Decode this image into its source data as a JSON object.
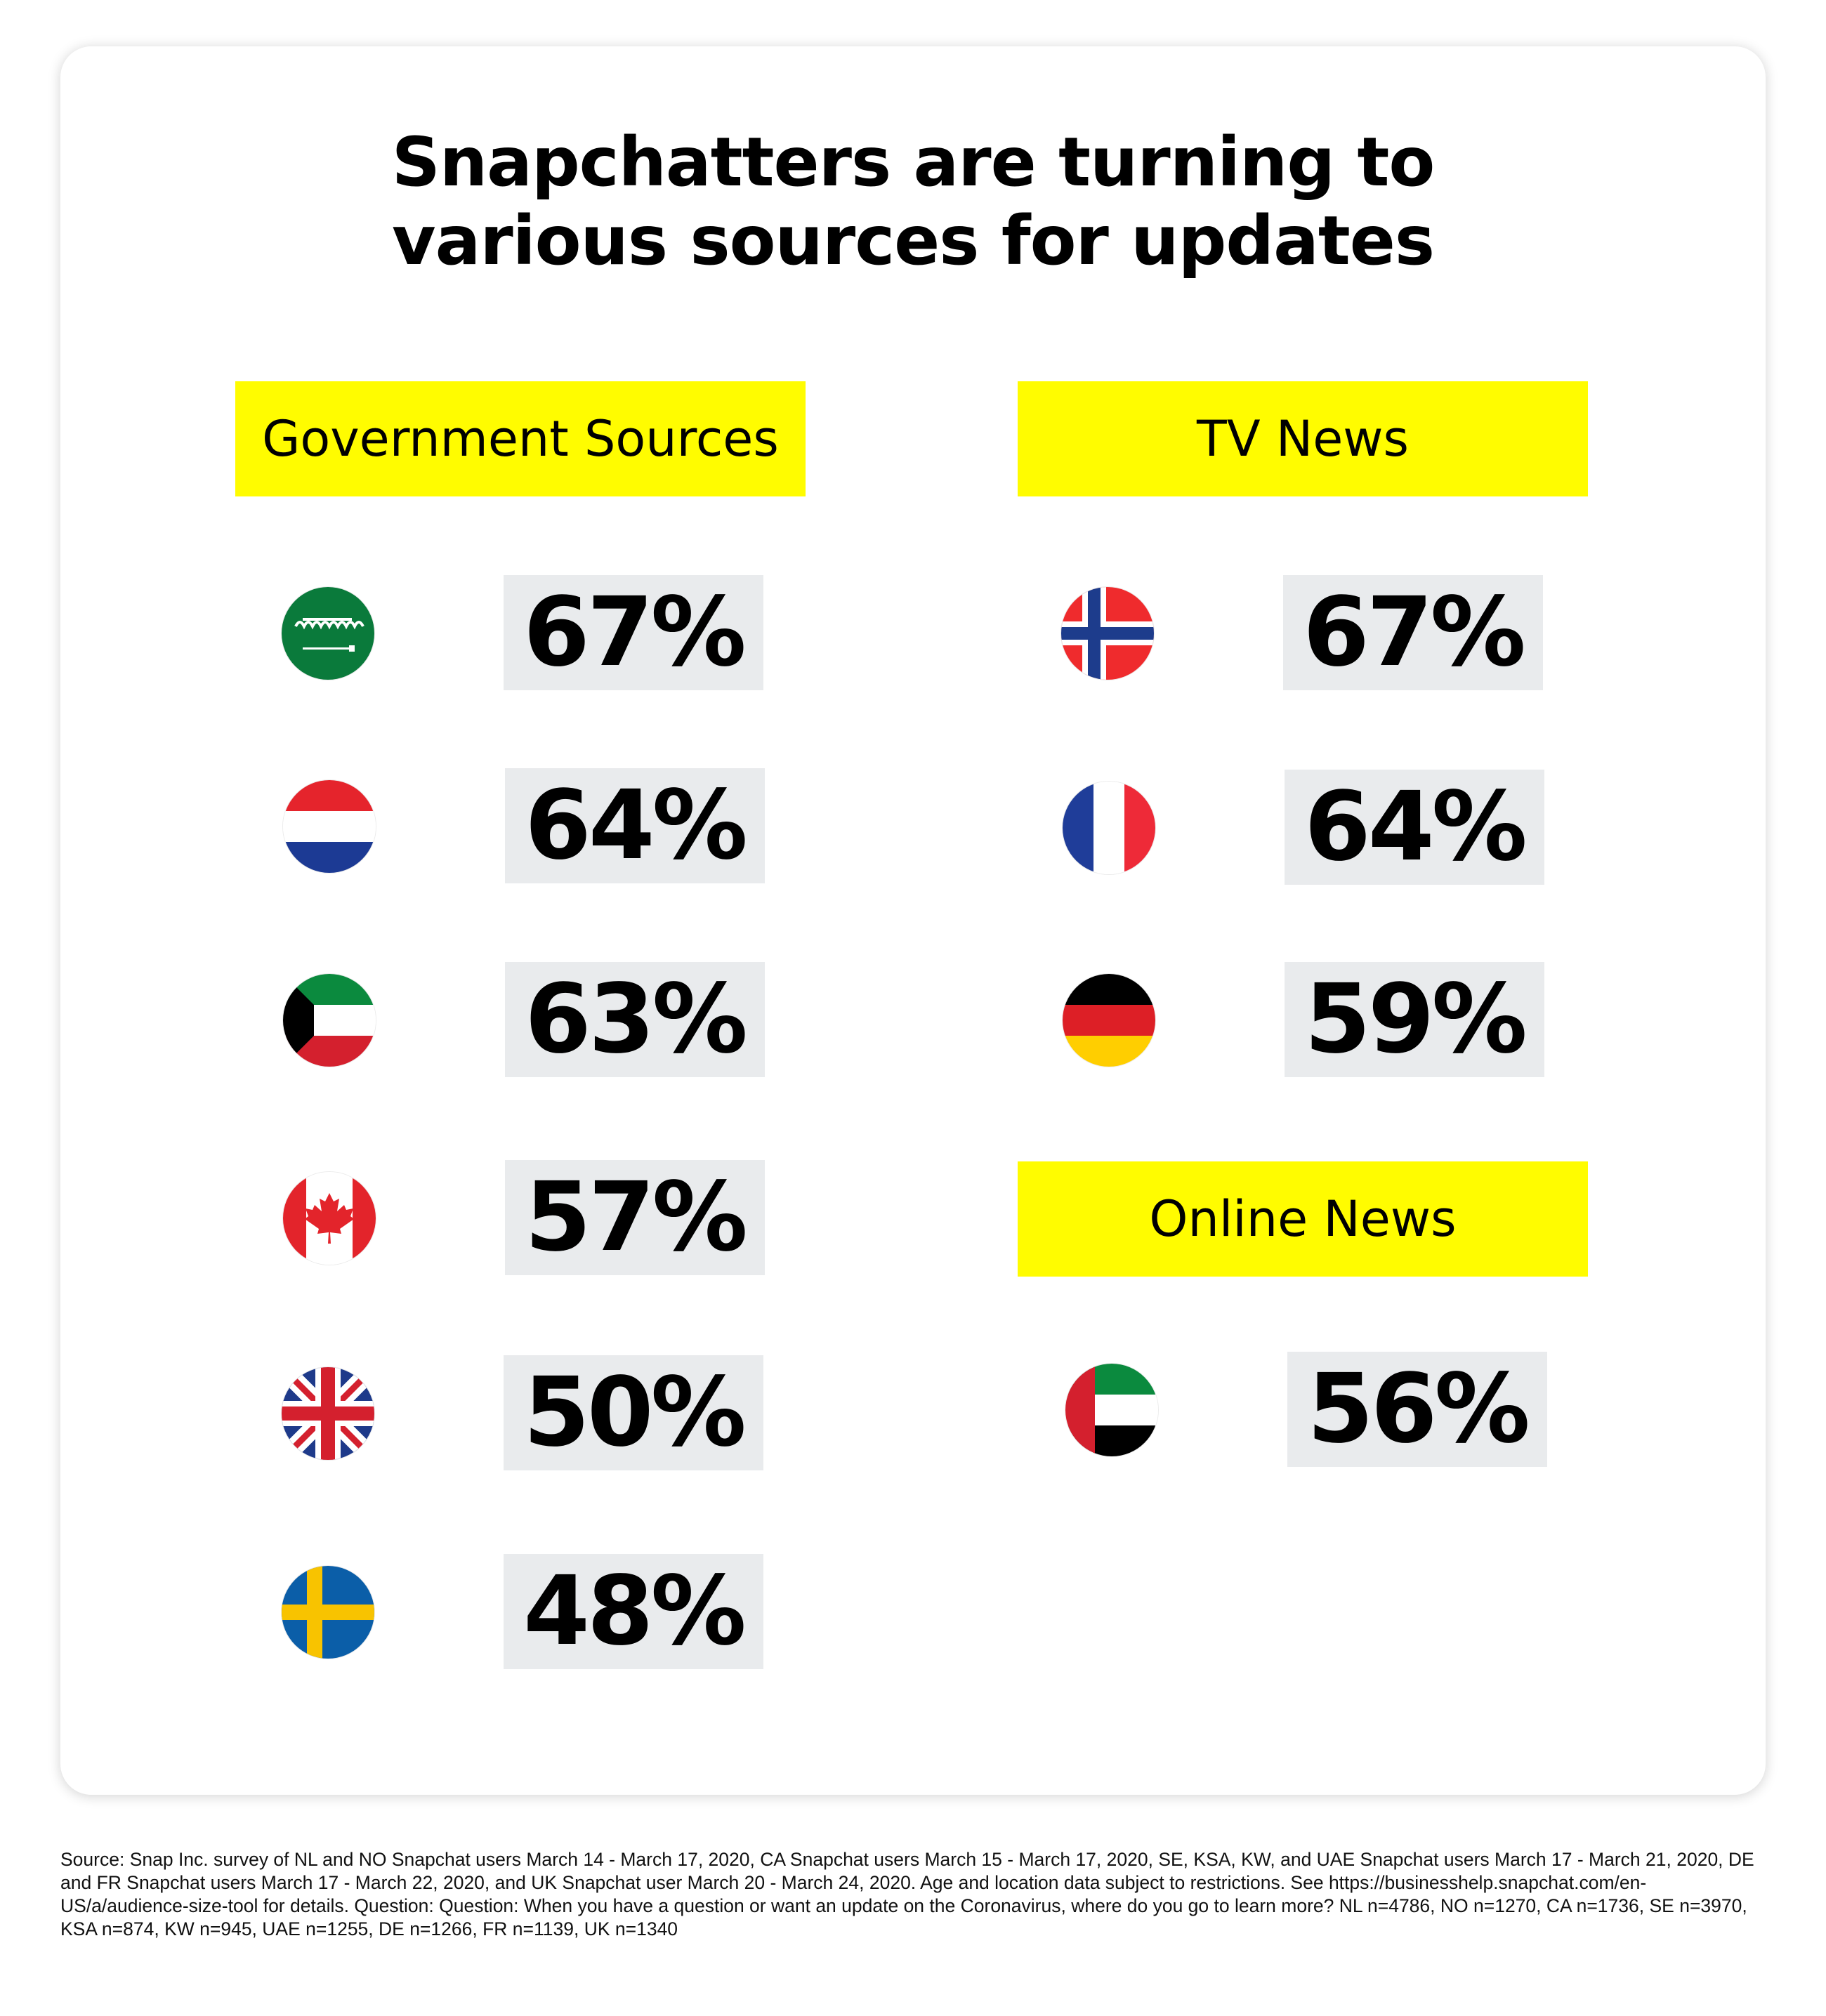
{
  "title": {
    "line1": "Snapchatters are turning to",
    "line2": "various sources for updates"
  },
  "sections": {
    "government": {
      "label": "Government Sources",
      "rows": [
        {
          "flag": "saudi-arabia-flag-icon",
          "value": "67%"
        },
        {
          "flag": "netherlands-flag-icon",
          "value": "64%"
        },
        {
          "flag": "kuwait-flag-icon",
          "value": "63%"
        },
        {
          "flag": "canada-flag-icon",
          "value": "57%"
        },
        {
          "flag": "uk-flag-icon",
          "value": "50%"
        },
        {
          "flag": "sweden-flag-icon",
          "value": "48%"
        }
      ]
    },
    "tv_news": {
      "label": "TV News",
      "rows": [
        {
          "flag": "norway-flag-icon",
          "value": "67%"
        },
        {
          "flag": "france-flag-icon",
          "value": "64%"
        },
        {
          "flag": "germany-flag-icon",
          "value": "59%"
        }
      ]
    },
    "online_news": {
      "label": "Online News",
      "rows": [
        {
          "flag": "uae-flag-icon",
          "value": "56%"
        }
      ]
    }
  },
  "colors": {
    "header_bg": "#FFFC00",
    "value_bg": "#E9EBED"
  },
  "source": "Source: Snap Inc. survey of NL and NO Snapchat users March 14 - March 17, 2020, CA Snapchat users March 15 - March 17, 2020, SE, KSA, KW, and UAE Snapchat users March 17 - March 21, 2020, DE and FR Snapchat users March 17 - March 22, 2020, and UK Snapchat user March 20 - March 24, 2020. Age and location data subject to restrictions. See https://businesshelp.snapchat.com/en-US/a/audience-size-tool for details. Question: Question: When you have a question or want an update on the Coronavirus, where do you go to learn more? NL n=4786, NO n=1270, CA n=1736, SE n=3970, KSA n=874, KW n=945, UAE n=1255, DE n=1266, FR n=1139, UK n=1340"
}
